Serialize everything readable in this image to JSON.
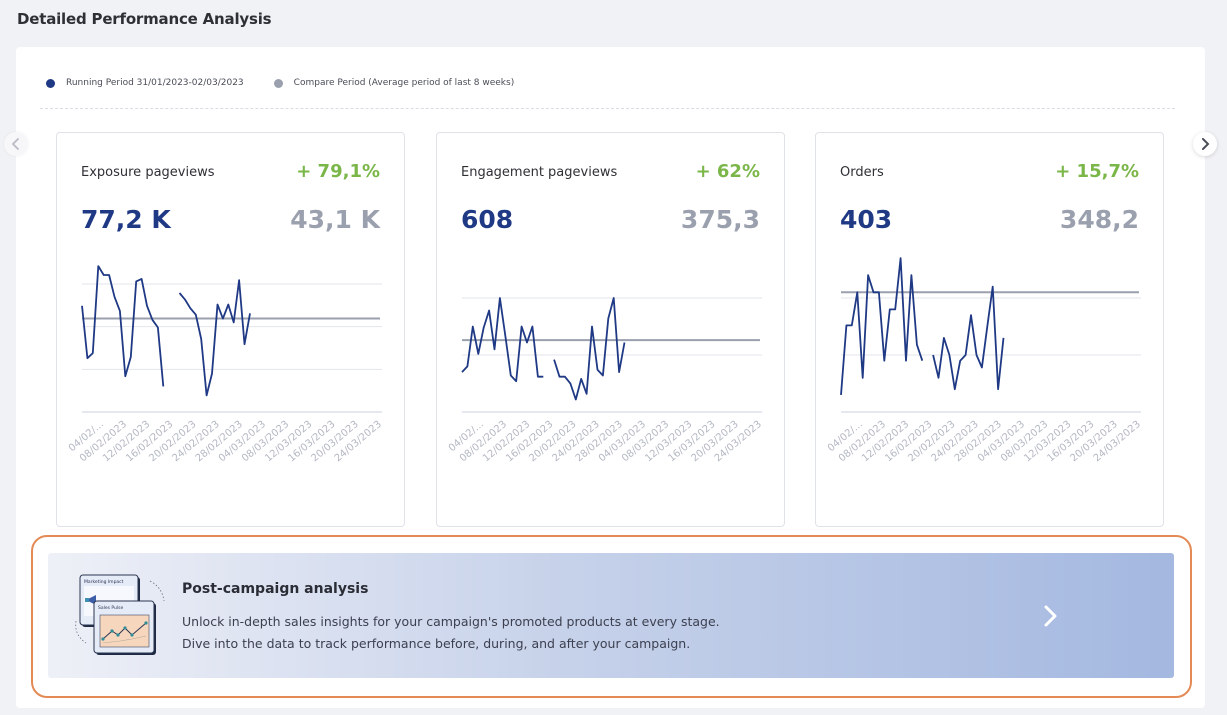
{
  "page": {
    "title": "Detailed Performance Analysis"
  },
  "legend": {
    "running": {
      "label": "Running Period 31/01/2023-02/03/2023",
      "color": "#1f3985"
    },
    "compare": {
      "label": "Compare Period (Average period of last 8 weeks)",
      "color": "#9aa0ad"
    }
  },
  "nav": {
    "prev_icon": "chevron-left-icon",
    "next_icon": "chevron-right-icon"
  },
  "colors": {
    "positive": "#7ab648",
    "primary": "#1f3985",
    "muted": "#9aa0ad",
    "highlight_border": "#e38a55"
  },
  "cards": [
    {
      "title": "Exposure pageviews",
      "change": "+ 79,1%",
      "value": "77,2 K",
      "compare_value": "43,1 K"
    },
    {
      "title": "Engagement pageviews",
      "change": "+ 62%",
      "value": "608",
      "compare_value": "375,3"
    },
    {
      "title": "Orders",
      "change": "+ 15,7%",
      "value": "403",
      "compare_value": "348,2"
    }
  ],
  "chart_data": [
    {
      "type": "line",
      "title": "Exposure pageviews",
      "x_tick_labels": [
        "04/02/...",
        "08/02/2023",
        "12/02/2023",
        "16/02/2023",
        "20/02/2023",
        "24/02/2023",
        "28/02/2023",
        "04/03/2023",
        "08/03/2023",
        "12/03/2023",
        "16/03/2023",
        "20/03/2023",
        "24/03/2023"
      ],
      "y_unit": "relative index (baseline 0, top gridline 100)",
      "ylim": [
        0,
        100
      ],
      "gridlines": [
        0,
        33.3,
        66.7,
        100
      ],
      "series": [
        {
          "name": "Running Period",
          "values": [
            83,
            42,
            46,
            114,
            107,
            107,
            90,
            79,
            28,
            43,
            102,
            104,
            83,
            72,
            66,
            20,
            null,
            null,
            93,
            88,
            81,
            76,
            57,
            13,
            30,
            84,
            73,
            84,
            70,
            103,
            53,
            77
          ]
        },
        {
          "name": "Compare Period",
          "constant": 73
        }
      ],
      "slots": 56
    },
    {
      "type": "line",
      "title": "Engagement pageviews",
      "x_tick_labels": [
        "04/02/...",
        "08/02/2023",
        "12/02/2023",
        "16/02/2023",
        "20/02/2023",
        "24/02/2023",
        "28/02/2023",
        "04/03/2023",
        "08/03/2023",
        "12/03/2023",
        "16/03/2023",
        "20/03/2023",
        "24/03/2023"
      ],
      "y_unit": "relative index (baseline 0, top gridline 100)",
      "ylim": [
        0,
        100
      ],
      "gridlines": [
        0,
        50,
        100
      ],
      "series": [
        {
          "name": "Running Period",
          "values": [
            35,
            40,
            75,
            51,
            74,
            89,
            55,
            100,
            67,
            32,
            27,
            75,
            61,
            75,
            31,
            31,
            null,
            46,
            31,
            31,
            25,
            11,
            29,
            16,
            75,
            37,
            32,
            82,
            100,
            35,
            61
          ]
        },
        {
          "name": "Compare Period",
          "constant": 63
        }
      ],
      "slots": 56
    },
    {
      "type": "line",
      "title": "Orders",
      "x_tick_labels": [
        "04/02/...",
        "08/02/2023",
        "12/02/2023",
        "16/02/2023",
        "20/02/2023",
        "24/02/2023",
        "28/02/2023",
        "04/03/2023",
        "08/03/2023",
        "12/03/2023",
        "16/03/2023",
        "20/03/2023",
        "24/03/2023"
      ],
      "y_unit": "relative index (baseline 0, top gridline 100)",
      "ylim": [
        0,
        100
      ],
      "gridlines": [
        0,
        50,
        100
      ],
      "series": [
        {
          "name": "Running Period",
          "values": [
            15,
            76,
            76,
            105,
            30,
            120,
            105,
            105,
            45,
            90,
            90,
            135,
            45,
            120,
            59,
            45,
            null,
            50,
            30,
            65,
            50,
            20,
            45,
            50,
            85,
            50,
            39,
            75,
            110,
            20,
            65
          ]
        },
        {
          "name": "Compare Period",
          "constant": 105
        }
      ],
      "slots": 56
    }
  ],
  "banner": {
    "title": "Post-campaign analysis",
    "line1": "Unlock in-depth sales insights for your campaign's promoted products at every stage.",
    "line2": "Dive into the data to track performance before, during, and after your campaign.",
    "illustration_labels": {
      "back_card": "Marketing Impact",
      "front_card": "Sales Pulse"
    },
    "arrow_icon": "chevron-right-icon"
  }
}
